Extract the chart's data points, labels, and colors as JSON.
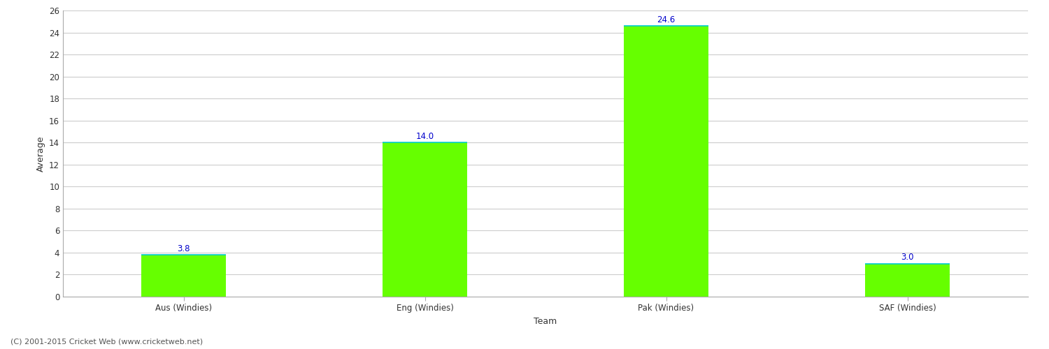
{
  "categories": [
    "Aus (Windies)",
    "Eng (Windies)",
    "Pak (Windies)",
    "SAF (Windies)"
  ],
  "values": [
    3.8,
    14.0,
    24.6,
    3.0
  ],
  "bar_color": "#66ff00",
  "bar_top_edge_color": "#00cccc",
  "value_label_color": "#0000cc",
  "xlabel": "Team",
  "ylabel": "Average",
  "ylim": [
    0,
    26
  ],
  "yticks": [
    0,
    2,
    4,
    6,
    8,
    10,
    12,
    14,
    16,
    18,
    20,
    22,
    24,
    26
  ],
  "grid_color": "#cccccc",
  "background_color": "#ffffff",
  "footer": "(C) 2001-2015 Cricket Web (www.cricketweb.net)",
  "value_fontsize": 8.5,
  "axis_label_fontsize": 9,
  "tick_fontsize": 8.5,
  "footer_fontsize": 8,
  "bar_width": 0.35,
  "spine_color": "#aaaaaa"
}
